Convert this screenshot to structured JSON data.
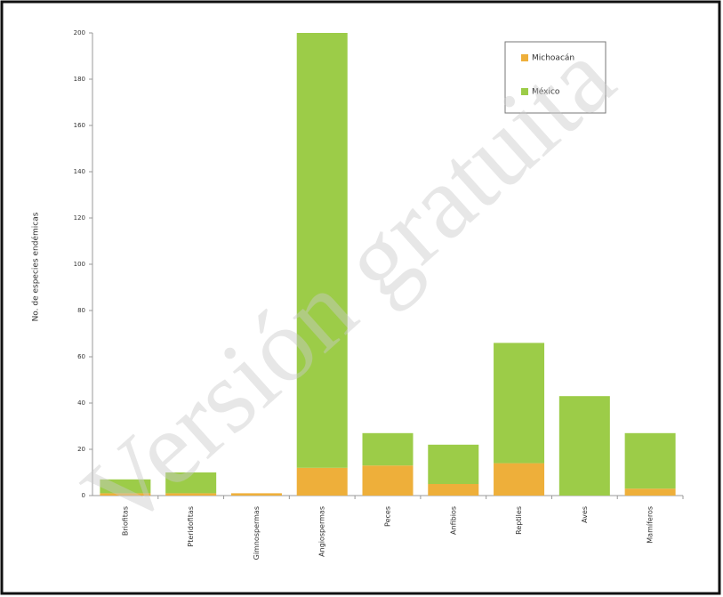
{
  "chart_data": {
    "type": "stacked_bar",
    "y_label": "No. de especies endémicas",
    "categories": [
      "Briofitas",
      "Pteridofitas",
      "Gimnospermas",
      "Angiospermas",
      "Peces",
      "Anfibios",
      "Reptiles",
      "Aves",
      "Mamíferos"
    ],
    "series": [
      {
        "name": "Michoacán",
        "color": "#eeaf3a",
        "values": [
          1,
          1,
          1,
          12,
          13,
          5,
          14,
          0,
          3
        ]
      },
      {
        "name": "México",
        "color": "#9ccc48",
        "values": [
          6,
          9,
          0,
          188,
          14,
          17,
          52,
          43,
          24
        ]
      }
    ],
    "ylim": [
      0,
      200
    ],
    "yticks": [
      0,
      20,
      40,
      60,
      80,
      100,
      120,
      140,
      160,
      180,
      200
    ],
    "legend": "upper right",
    "watermark": "Versión gratuita"
  }
}
